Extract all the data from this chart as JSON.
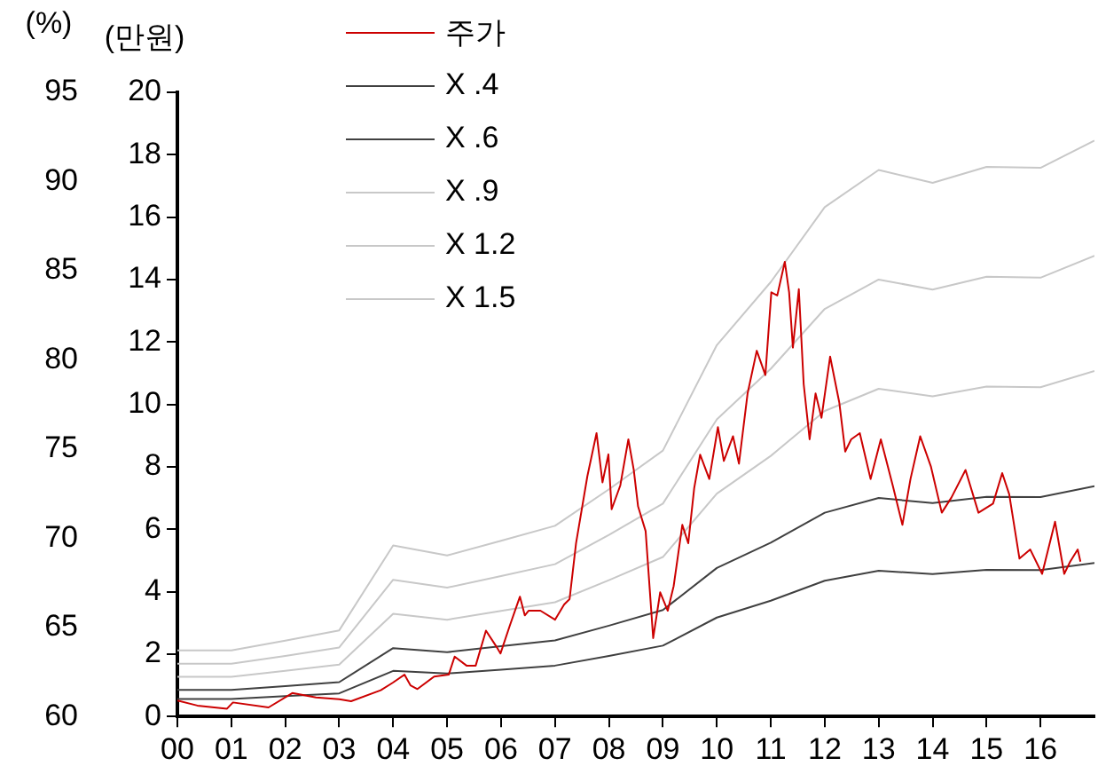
{
  "chart_data": {
    "type": "line",
    "ylabel": "(만원)",
    "y2label": "(%)",
    "x": [
      2000,
      2001,
      2002,
      2003,
      2004,
      2005,
      2006,
      2007,
      2008,
      2009,
      2010,
      2011,
      2012,
      2013,
      2014,
      2015,
      2016,
      2017
    ],
    "xlim": [
      2000,
      2017
    ],
    "xticks": [
      {
        "value": 2000,
        "label": "00"
      },
      {
        "value": 2001,
        "label": "01"
      },
      {
        "value": 2002,
        "label": "02"
      },
      {
        "value": 2003,
        "label": "03"
      },
      {
        "value": 2004,
        "label": "04"
      },
      {
        "value": 2005,
        "label": "05"
      },
      {
        "value": 2006,
        "label": "06"
      },
      {
        "value": 2007,
        "label": "07"
      },
      {
        "value": 2008,
        "label": "08"
      },
      {
        "value": 2009,
        "label": "09"
      },
      {
        "value": 2010,
        "label": "10"
      },
      {
        "value": 2011,
        "label": "11"
      },
      {
        "value": 2012,
        "label": "12"
      },
      {
        "value": 2013,
        "label": "13"
      },
      {
        "value": 2014,
        "label": "14"
      },
      {
        "value": 2015,
        "label": "15"
      },
      {
        "value": 2016,
        "label": "16"
      }
    ],
    "ylim": [
      0,
      20
    ],
    "yticks": [
      0,
      2,
      4,
      6,
      8,
      10,
      12,
      14,
      16,
      18,
      20
    ],
    "y2lim": [
      60,
      95
    ],
    "y2ticks": [
      60,
      65,
      70,
      75,
      80,
      85,
      90,
      95
    ],
    "grid": false,
    "legend": "top left",
    "marker": "none",
    "line_style": "solid",
    "series": [
      {
        "name": "주가",
        "color": "#cc0000",
        "x": [
          2000.0,
          2000.37,
          2000.92,
          2001.03,
          2001.69,
          2002.13,
          2002.57,
          2003.0,
          2003.22,
          2003.77,
          2003.99,
          2004.21,
          2004.32,
          2004.45,
          2004.76,
          2005.03,
          2005.14,
          2005.36,
          2005.53,
          2005.72,
          2005.91,
          2005.99,
          2006.16,
          2006.35,
          2006.44,
          2006.51,
          2006.73,
          2007.0,
          2007.17,
          2007.27,
          2007.39,
          2007.6,
          2007.77,
          2007.88,
          2007.99,
          2008.05,
          2008.21,
          2008.36,
          2008.46,
          2008.54,
          2008.68,
          2008.82,
          2008.95,
          2009.09,
          2009.2,
          2009.36,
          2009.47,
          2009.58,
          2009.69,
          2009.86,
          2010.02,
          2010.13,
          2010.3,
          2010.41,
          2010.57,
          2010.74,
          2010.9,
          2011.01,
          2011.12,
          2011.26,
          2011.34,
          2011.41,
          2011.52,
          2011.61,
          2011.72,
          2011.83,
          2011.94,
          2012.1,
          2012.27,
          2012.38,
          2012.49,
          2012.65,
          2012.85,
          2013.04,
          2013.26,
          2013.44,
          2013.59,
          2013.77,
          2013.97,
          2014.17,
          2014.35,
          2014.61,
          2014.85,
          2015.12,
          2015.29,
          2015.42,
          2015.61,
          2015.81,
          2016.03,
          2016.27,
          2016.44,
          2016.55,
          2016.69,
          2016.74
        ],
        "values": [
          0.51,
          0.35,
          0.25,
          0.45,
          0.29,
          0.75,
          0.61,
          0.55,
          0.49,
          0.84,
          1.08,
          1.34,
          1.0,
          0.88,
          1.28,
          1.34,
          1.92,
          1.63,
          1.63,
          2.75,
          2.25,
          2.02,
          2.9,
          3.84,
          3.24,
          3.39,
          3.39,
          3.1,
          3.59,
          3.76,
          5.55,
          7.7,
          9.08,
          7.5,
          8.4,
          6.64,
          7.4,
          8.88,
          7.9,
          6.73,
          5.94,
          2.51,
          3.98,
          3.39,
          4.18,
          6.14,
          5.55,
          7.31,
          8.39,
          7.61,
          9.27,
          8.19,
          8.98,
          8.1,
          10.35,
          11.72,
          10.94,
          13.59,
          13.49,
          14.57,
          13.59,
          11.82,
          13.69,
          10.65,
          8.88,
          10.35,
          9.57,
          11.53,
          10.06,
          8.49,
          8.88,
          9.08,
          7.61,
          8.88,
          7.41,
          6.14,
          7.61,
          8.98,
          8.0,
          6.53,
          7.02,
          7.9,
          6.53,
          6.82,
          7.8,
          7.12,
          5.06,
          5.35,
          4.57,
          6.24,
          4.57,
          4.96,
          5.35,
          4.96
        ]
      },
      {
        "name": "X .4",
        "color": "#404040",
        "values": [
          0.56,
          0.56,
          0.65,
          0.74,
          1.46,
          1.38,
          1.5,
          1.63,
          1.94,
          2.27,
          3.17,
          3.71,
          4.35,
          4.67,
          4.56,
          4.7,
          4.69,
          4.92
        ]
      },
      {
        "name": "X .6",
        "color": "#404040",
        "values": [
          0.85,
          0.85,
          0.97,
          1.1,
          2.19,
          2.06,
          2.25,
          2.44,
          2.91,
          3.41,
          4.76,
          5.57,
          6.53,
          7.0,
          6.84,
          7.04,
          7.03,
          7.38
        ]
      },
      {
        "name": "X .9",
        "color": "#c8c8c8",
        "values": [
          1.27,
          1.27,
          1.46,
          1.66,
          3.29,
          3.1,
          3.38,
          3.66,
          4.37,
          5.11,
          7.14,
          8.35,
          9.79,
          10.5,
          10.26,
          10.57,
          10.55,
          11.07
        ]
      },
      {
        "name": "X 1.2",
        "color": "#c8c8c8",
        "values": [
          1.69,
          1.69,
          1.94,
          2.21,
          4.38,
          4.13,
          4.5,
          4.88,
          5.82,
          6.82,
          9.52,
          11.14,
          13.06,
          14.0,
          13.68,
          14.09,
          14.06,
          14.76
        ]
      },
      {
        "name": "X 1.5",
        "color": "#c8c8c8",
        "values": [
          2.12,
          2.12,
          2.43,
          2.76,
          5.48,
          5.16,
          5.63,
          6.11,
          7.28,
          8.52,
          11.9,
          13.92,
          16.32,
          17.51,
          17.1,
          17.61,
          17.58,
          18.45
        ]
      }
    ]
  }
}
